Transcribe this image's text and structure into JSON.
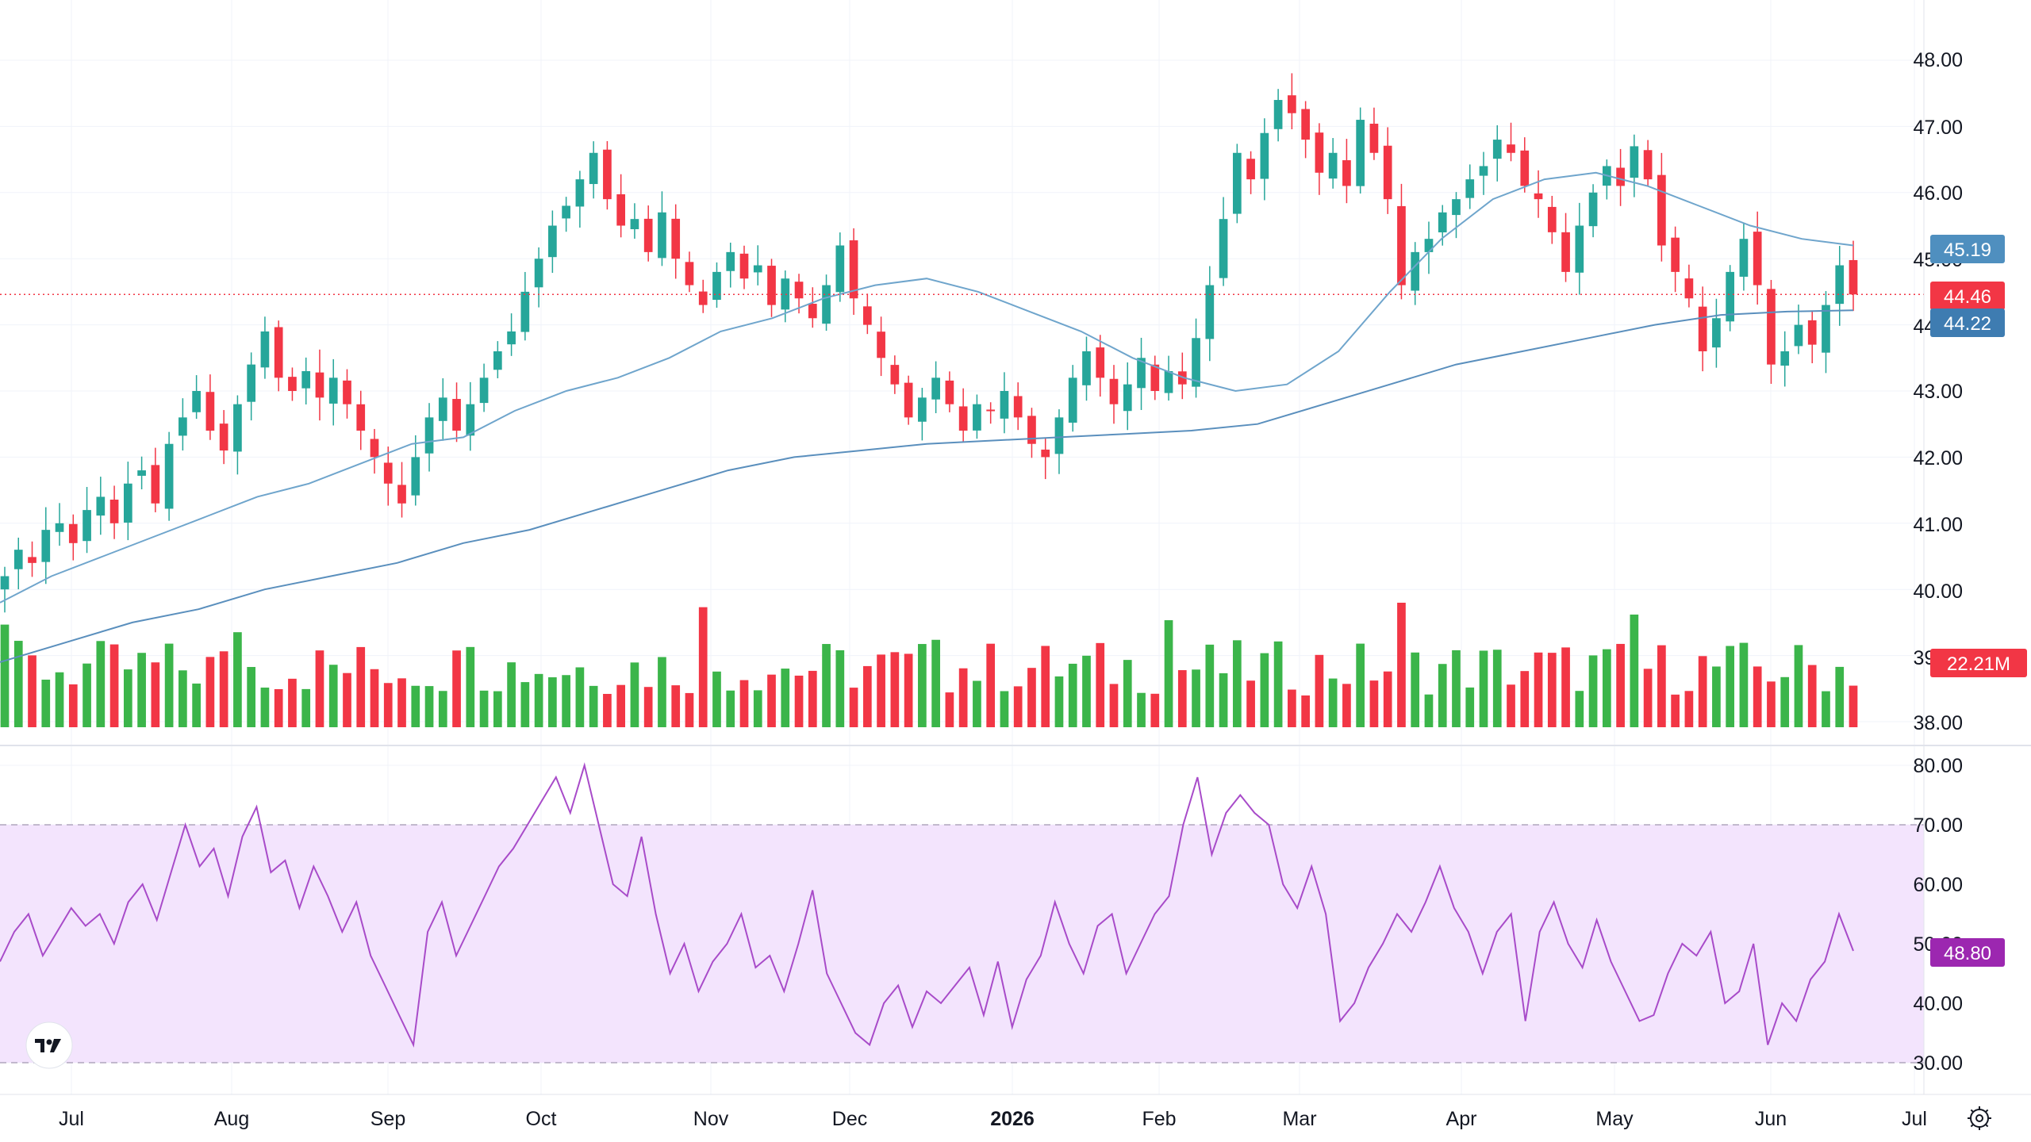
{
  "colors": {
    "up": "#22ab94",
    "up_candle": "#26a69a",
    "vol_up": "#3bb54a",
    "down": "#f23645",
    "ma_fast": "#6fa5cc",
    "ma_slow": "#5a8fbd",
    "rsi_line": "#a84bc9",
    "rsi_band": "#f3e4fd",
    "grid": "#f0f3fa",
    "price_line": "#f23645"
  },
  "icons": {
    "logo": "tradingview-logo-icon",
    "settings": "settings-gear-icon"
  },
  "chart_data": [
    {
      "type": "candlestick",
      "title": "",
      "price_axis_ticks": [
        "48.00",
        "47.00",
        "46.00",
        "45.00",
        "44.00",
        "43.00",
        "42.00",
        "41.00",
        "40.00",
        "39.00",
        "38.00"
      ],
      "time_axis_ticks": [
        "Jul",
        "Aug",
        "Sep",
        "Oct",
        "Nov",
        "Dec",
        "2026",
        "Feb",
        "Mar",
        "Apr",
        "May",
        "Jun",
        "Jul"
      ],
      "ylim": [
        38,
        48
      ],
      "last_price": "44.46",
      "ma_fast_last": "45.19",
      "ma_slow_last": "44.22",
      "volume_last": "22.21M",
      "close_series": [
        40.2,
        40.6,
        40.4,
        40.9,
        41.0,
        40.7,
        41.2,
        41.4,
        41.0,
        41.6,
        41.8,
        41.3,
        42.2,
        42.6,
        43.0,
        42.4,
        42.1,
        42.8,
        43.4,
        43.9,
        43.2,
        43.0,
        43.3,
        42.9,
        43.2,
        42.8,
        42.4,
        42.0,
        41.6,
        41.3,
        42.0,
        42.6,
        42.9,
        42.4,
        42.8,
        43.2,
        43.6,
        43.9,
        44.5,
        45.0,
        45.5,
        45.8,
        46.2,
        46.6,
        45.9,
        45.5,
        45.6,
        45.1,
        45.7,
        45.0,
        44.6,
        44.3,
        44.8,
        45.1,
        44.7,
        44.9,
        44.3,
        44.7,
        44.4,
        44.1,
        44.6,
        45.2,
        44.4,
        44.0,
        43.5,
        43.1,
        42.6,
        42.9,
        43.2,
        42.8,
        42.4,
        42.8,
        42.7,
        43.0,
        42.6,
        42.2,
        42.0,
        42.6,
        43.2,
        43.6,
        43.2,
        42.8,
        43.1,
        43.5,
        43.0,
        43.3,
        43.1,
        43.8,
        44.6,
        45.6,
        46.6,
        46.2,
        46.9,
        47.4,
        47.2,
        46.8,
        46.3,
        46.6,
        46.1,
        47.1,
        46.6,
        45.9,
        44.6,
        45.1,
        45.3,
        45.7,
        45.9,
        46.2,
        46.4,
        46.8,
        46.6,
        46.1,
        45.9,
        45.4,
        44.8,
        45.5,
        46.0,
        46.4,
        46.1,
        46.7,
        46.2,
        45.2,
        44.8,
        44.4,
        43.6,
        44.1,
        44.8,
        45.3,
        44.6,
        43.4,
        43.6,
        44.0,
        43.7,
        44.3,
        44.9,
        44.46
      ],
      "ma_fast_series": [
        39.8,
        40.2,
        40.5,
        40.8,
        41.1,
        41.4,
        41.6,
        41.9,
        42.2,
        42.3,
        42.7,
        43.0,
        43.2,
        43.5,
        43.9,
        44.1,
        44.4,
        44.6,
        44.7,
        44.5,
        44.2,
        43.9,
        43.5,
        43.2,
        43.0,
        43.1,
        43.6,
        44.5,
        45.3,
        45.9,
        46.2,
        46.3,
        46.1,
        45.8,
        45.5,
        45.3,
        45.2
      ],
      "ma_slow_series": [
        38.9,
        39.2,
        39.5,
        39.7,
        40.0,
        40.2,
        40.4,
        40.7,
        40.9,
        41.2,
        41.5,
        41.8,
        42.0,
        42.1,
        42.2,
        42.25,
        42.3,
        42.35,
        42.4,
        42.5,
        42.8,
        43.1,
        43.4,
        43.6,
        43.8,
        44.0,
        44.15,
        44.2,
        44.22
      ]
    },
    {
      "type": "line",
      "title": "",
      "series": [
        {
          "name": "",
          "values": [
            47,
            52,
            55,
            48,
            52,
            56,
            53,
            55,
            50,
            57,
            60,
            54,
            62,
            70,
            63,
            66,
            58,
            68,
            73,
            62,
            64,
            56,
            63,
            58,
            52,
            57,
            48,
            43,
            38,
            33,
            52,
            57,
            48,
            53,
            58,
            63,
            66,
            70,
            74,
            78,
            72,
            80,
            70,
            60,
            58,
            68,
            55,
            45,
            50,
            42,
            47,
            50,
            55,
            46,
            48,
            42,
            50,
            59,
            45,
            40,
            35,
            33,
            40,
            43,
            36,
            42,
            40,
            43,
            46,
            38,
            47,
            36,
            44,
            48,
            57,
            50,
            45,
            53,
            55,
            45,
            50,
            55,
            58,
            70,
            78,
            65,
            72,
            75,
            72,
            70,
            60,
            56,
            63,
            55,
            37,
            40,
            46,
            50,
            55,
            52,
            57,
            63,
            56,
            52,
            45,
            52,
            55,
            37,
            52,
            57,
            50,
            46,
            54,
            47,
            42,
            37,
            38,
            45,
            50,
            48,
            52,
            40,
            42,
            50,
            33,
            40,
            37,
            44,
            47,
            55,
            48.8
          ]
        }
      ],
      "ylim": [
        30,
        80
      ],
      "y_ticks": [
        "80.00",
        "70.00",
        "60.00",
        "50.00",
        "40.00",
        "30.00"
      ],
      "band": [
        30,
        70
      ],
      "last_value": "48.80"
    }
  ]
}
